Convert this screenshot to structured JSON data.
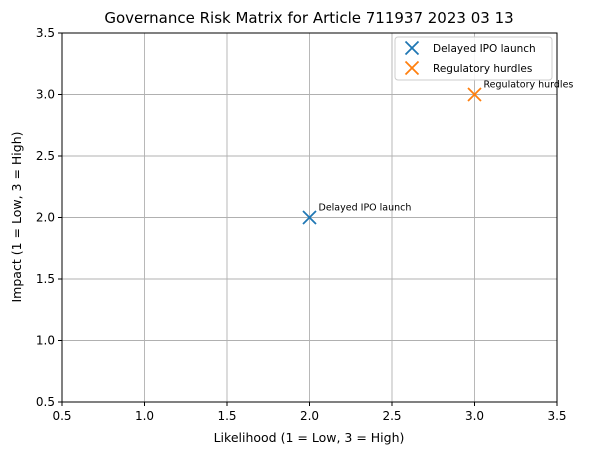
{
  "chart_data": {
    "type": "scatter",
    "title": "Governance Risk Matrix for Article 711937 2023 03 13",
    "xlabel": "Likelihood (1 = Low, 3 = High)",
    "ylabel": "Impact (1 = Low, 3 = High)",
    "xlim": [
      0.5,
      3.5
    ],
    "ylim": [
      0.5,
      3.5
    ],
    "xticks": [
      "0.5",
      "1.0",
      "1.5",
      "2.0",
      "2.5",
      "3.0",
      "3.5"
    ],
    "yticks": [
      "0.5",
      "1.0",
      "1.5",
      "2.0",
      "2.5",
      "3.0",
      "3.5"
    ],
    "grid": true,
    "legend_position": "top-right",
    "marker": "x",
    "series": [
      {
        "name": "Delayed IPO launch",
        "x": 2,
        "y": 2,
        "color": "#1f77b4",
        "annotation": "Delayed IPO launch"
      },
      {
        "name": "Regulatory hurdles",
        "x": 3,
        "y": 3,
        "color": "#ff7f0e",
        "annotation": "Regulatory hurdles"
      }
    ]
  }
}
